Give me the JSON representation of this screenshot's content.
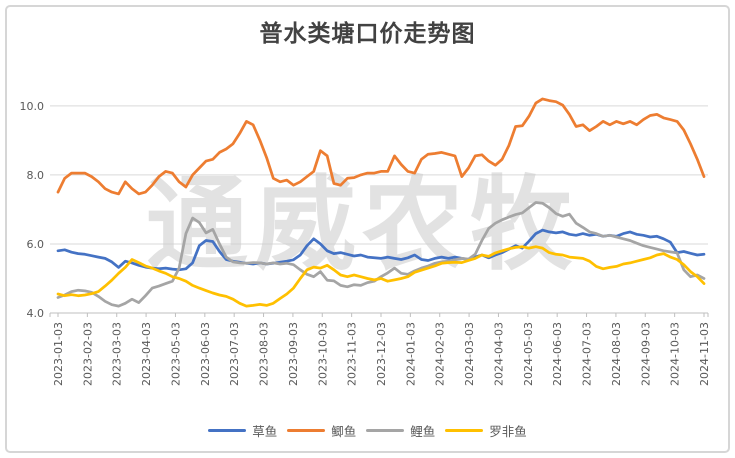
{
  "watermark": "通威农牧",
  "chart_data": {
    "type": "line",
    "title": "普水类塘口价走势图",
    "xlabel": "",
    "ylabel": "",
    "grid": "horizontal",
    "legend_position": "bottom",
    "ylim": [
      4.0,
      10.4
    ],
    "y_ticks": [
      4.0,
      6.0,
      8.0,
      10.0
    ],
    "y_tick_labels": [
      "4.0",
      "6.0",
      "8.0",
      "10.0"
    ],
    "x_tick_labels": [
      "2023-01-03",
      "2023-02-03",
      "2023-03-03",
      "2023-04-03",
      "2023-05-03",
      "2023-06-03",
      "2023-07-03",
      "2023-08-03",
      "2023-09-03",
      "2023-10-03",
      "2023-11-03",
      "2023-12-03",
      "2024-01-03",
      "2024-02-03",
      "2024-03-03",
      "2024-04-03",
      "2024-05-03",
      "2024-06-03",
      "2024-07-03",
      "2024-08-03",
      "2024-09-03",
      "2024-10-03",
      "2024-11-03"
    ],
    "points_per_series": 97,
    "x_frequency": "weekly",
    "series": [
      {
        "name": "草鱼",
        "key": "grass-carp",
        "color": "#4472C4",
        "values": [
          5.8,
          5.83,
          5.76,
          5.72,
          5.7,
          5.66,
          5.62,
          5.58,
          5.48,
          5.32,
          5.5,
          5.45,
          5.38,
          5.33,
          5.3,
          5.28,
          5.3,
          5.27,
          5.25,
          5.28,
          5.45,
          5.95,
          6.1,
          6.07,
          5.78,
          5.55,
          5.5,
          5.47,
          5.44,
          5.42,
          5.45,
          5.42,
          5.44,
          5.47,
          5.5,
          5.54,
          5.68,
          5.95,
          6.15,
          6.0,
          5.8,
          5.72,
          5.75,
          5.7,
          5.65,
          5.68,
          5.62,
          5.6,
          5.58,
          5.62,
          5.58,
          5.55,
          5.6,
          5.68,
          5.55,
          5.52,
          5.58,
          5.62,
          5.58,
          5.62,
          5.58,
          5.55,
          5.62,
          5.68,
          5.6,
          5.68,
          5.75,
          5.85,
          5.95,
          5.88,
          6.08,
          6.3,
          6.4,
          6.35,
          6.32,
          6.35,
          6.28,
          6.25,
          6.3,
          6.25,
          6.28,
          6.22,
          6.25,
          6.22,
          6.3,
          6.35,
          6.28,
          6.25,
          6.2,
          6.22,
          6.15,
          6.05,
          5.75,
          5.78,
          5.73,
          5.68,
          5.7
        ]
      },
      {
        "name": "鲫鱼",
        "key": "crucian-carp",
        "color": "#ED7D31",
        "values": [
          7.5,
          7.9,
          8.05,
          8.05,
          8.05,
          7.95,
          7.8,
          7.6,
          7.5,
          7.45,
          7.8,
          7.6,
          7.45,
          7.5,
          7.7,
          7.95,
          8.1,
          8.05,
          7.8,
          7.65,
          8.0,
          8.2,
          8.4,
          8.45,
          8.65,
          8.75,
          8.9,
          9.2,
          9.55,
          9.45,
          9.0,
          8.5,
          7.9,
          7.8,
          7.85,
          7.7,
          7.8,
          7.95,
          8.1,
          8.7,
          8.55,
          7.75,
          7.7,
          7.9,
          7.92,
          8.0,
          8.05,
          8.05,
          8.1,
          8.1,
          8.55,
          8.3,
          8.1,
          8.05,
          8.45,
          8.6,
          8.62,
          8.65,
          8.6,
          8.55,
          7.95,
          8.2,
          8.55,
          8.58,
          8.4,
          8.28,
          8.45,
          8.85,
          9.4,
          9.42,
          9.7,
          10.08,
          10.2,
          10.15,
          10.12,
          10.02,
          9.75,
          9.4,
          9.45,
          9.28,
          9.4,
          9.55,
          9.45,
          9.55,
          9.48,
          9.55,
          9.45,
          9.6,
          9.72,
          9.75,
          9.65,
          9.6,
          9.55,
          9.3,
          8.9,
          8.45,
          7.95
        ]
      },
      {
        "name": "鲤鱼",
        "key": "common-carp",
        "color": "#A5A5A5",
        "values": [
          4.45,
          4.52,
          4.62,
          4.66,
          4.64,
          4.6,
          4.48,
          4.34,
          4.24,
          4.2,
          4.28,
          4.4,
          4.3,
          4.5,
          4.72,
          4.78,
          4.85,
          4.92,
          5.3,
          6.3,
          6.75,
          6.62,
          6.32,
          6.42,
          6.0,
          5.62,
          5.48,
          5.45,
          5.44,
          5.46,
          5.45,
          5.42,
          5.45,
          5.42,
          5.44,
          5.4,
          5.25,
          5.12,
          5.05,
          5.2,
          4.95,
          4.93,
          4.8,
          4.76,
          4.82,
          4.8,
          4.88,
          4.92,
          5.05,
          5.16,
          5.3,
          5.15,
          5.12,
          5.22,
          5.3,
          5.36,
          5.44,
          5.48,
          5.5,
          5.54,
          5.58,
          5.56,
          5.7,
          6.1,
          6.45,
          6.6,
          6.7,
          6.78,
          6.85,
          6.9,
          7.05,
          7.2,
          7.18,
          7.05,
          6.88,
          6.8,
          6.86,
          6.6,
          6.48,
          6.35,
          6.3,
          6.22,
          6.25,
          6.2,
          6.15,
          6.1,
          6.02,
          5.95,
          5.9,
          5.85,
          5.8,
          5.77,
          5.74,
          5.25,
          5.05,
          5.1,
          5.0
        ]
      },
      {
        "name": "罗非鱼",
        "key": "tilapia",
        "color": "#FFC000",
        "values": [
          4.55,
          4.5,
          4.53,
          4.5,
          4.52,
          4.56,
          4.62,
          4.78,
          4.95,
          5.15,
          5.32,
          5.55,
          5.46,
          5.36,
          5.3,
          5.22,
          5.15,
          5.05,
          5.0,
          4.92,
          4.8,
          4.72,
          4.65,
          4.58,
          4.52,
          4.48,
          4.4,
          4.28,
          4.2,
          4.22,
          4.25,
          4.22,
          4.28,
          4.42,
          4.55,
          4.72,
          5.0,
          5.25,
          5.33,
          5.3,
          5.38,
          5.25,
          5.1,
          5.05,
          5.1,
          5.05,
          5.0,
          4.96,
          5.0,
          4.92,
          4.96,
          5.0,
          5.05,
          5.18,
          5.24,
          5.3,
          5.36,
          5.44,
          5.46,
          5.47,
          5.46,
          5.52,
          5.58,
          5.68,
          5.64,
          5.74,
          5.8,
          5.86,
          5.9,
          5.92,
          5.88,
          5.92,
          5.88,
          5.75,
          5.7,
          5.68,
          5.62,
          5.6,
          5.58,
          5.5,
          5.35,
          5.28,
          5.32,
          5.35,
          5.42,
          5.45,
          5.5,
          5.55,
          5.6,
          5.68,
          5.72,
          5.62,
          5.55,
          5.4,
          5.2,
          5.05,
          4.85
        ]
      }
    ],
    "colors": {
      "gridline": "#d9d9d9",
      "axis_line": "#bfbfbf",
      "axis_text": "#595959",
      "title_text": "#424242",
      "watermark": "#cccccc"
    }
  }
}
